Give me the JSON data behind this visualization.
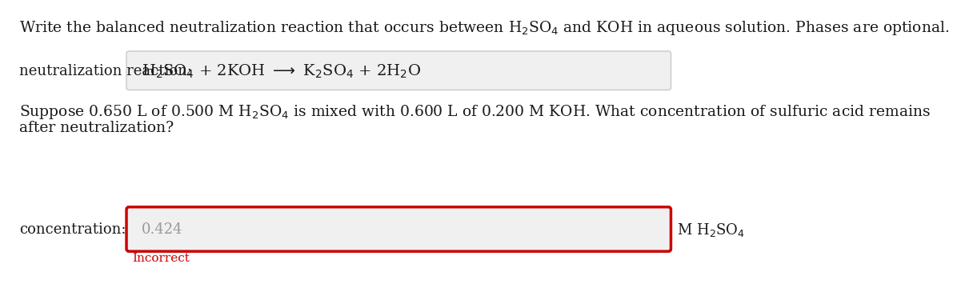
{
  "bg_color": "#ffffff",
  "title_text": "Write the balanced neutralization reaction that occurs between H$_2$SO$_4$ and KOH in aqueous solution. Phases are optional.",
  "label1": "neutralization reaction:",
  "reaction_box_text": "H$_2$SO$_4$ + 2KOH $\\longrightarrow$ K$_2$SO$_4$ + 2H$_2$O",
  "question_line1": "Suppose 0.650 L of 0.500 M H$_2$SO$_4$ is mixed with 0.600 L of 0.200 M KOH. What concentration of sulfuric acid remains",
  "question_line2": "after neutralization?",
  "label2": "concentration:",
  "answer_value": "0.424",
  "answer_units": "M H$_2$SO$_4$",
  "incorrect_text": "Incorrect",
  "text_color": "#1a1a1a",
  "incorrect_color": "#cc0000",
  "answer_color": "#999999",
  "box_bg": "#f0f0f0",
  "box_border_gray": "#c8c8c8",
  "box_border_red": "#cc0000",
  "font_size_title": 13.5,
  "font_size_label": 13,
  "font_size_reaction": 14,
  "font_size_question": 13.5,
  "font_size_answer": 13,
  "font_size_incorrect": 11
}
